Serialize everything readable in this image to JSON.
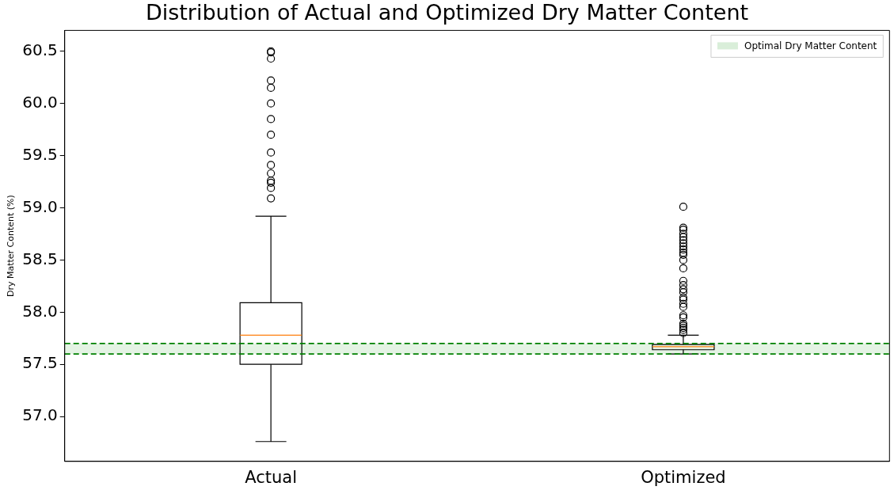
{
  "chart_data": {
    "type": "box",
    "title": "Distribution of Actual and Optimized Dry Matter Content",
    "ylabel": "Dry Matter Content (%)",
    "categories": [
      "Actual",
      "Optimized"
    ],
    "boxes": [
      {
        "low": 56.76,
        "q1": 57.5,
        "median": 57.78,
        "q3": 58.09,
        "high": 58.92,
        "outliers": [
          60.5,
          60.49,
          60.43,
          60.22,
          60.15,
          60.0,
          59.85,
          59.7,
          59.53,
          59.41,
          59.33,
          59.26,
          59.24,
          59.19,
          59.09
        ]
      },
      {
        "low": 57.6,
        "q1": 57.64,
        "median": 57.67,
        "q3": 57.69,
        "high": 57.78,
        "outliers": [
          59.01,
          58.81,
          58.79,
          58.75,
          58.72,
          58.69,
          58.66,
          58.63,
          58.6,
          58.57,
          58.55,
          58.5,
          58.42,
          58.3,
          58.26,
          58.22,
          58.19,
          58.14,
          58.12,
          58.08,
          58.05,
          57.97,
          57.95,
          57.89,
          57.87,
          57.85,
          57.83,
          57.8
        ]
      }
    ],
    "ylim": [
      56.57,
      60.7
    ],
    "yticks": [
      {
        "value": 57,
        "label": "57.0"
      },
      {
        "value": 57.5,
        "label": "57.5"
      },
      {
        "value": 58,
        "label": "58.0"
      },
      {
        "value": 58.5,
        "label": "58.5"
      },
      {
        "value": 59,
        "label": "59.0"
      },
      {
        "value": 59.5,
        "label": "59.5"
      },
      {
        "value": 60,
        "label": "60.0"
      },
      {
        "value": 60.5,
        "label": "60.5"
      }
    ],
    "bands": [
      {
        "axis": "y",
        "from": 57.6,
        "to": 57.7,
        "label": "Optimal Dry Matter Content",
        "color": "#d9eed9"
      }
    ],
    "ref_lines": [
      {
        "axis": "y",
        "value": 57.6,
        "label": null,
        "color": "#008000",
        "line_style": "dashed"
      },
      {
        "axis": "y",
        "value": 57.7,
        "label": null,
        "color": "#008000",
        "line_style": "dashed"
      }
    ],
    "legend": "top right",
    "grid": false
  }
}
